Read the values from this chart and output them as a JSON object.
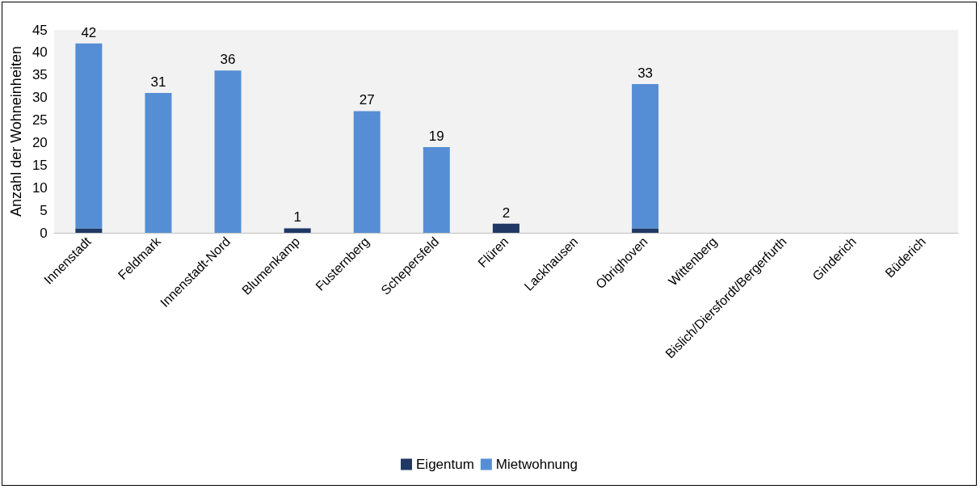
{
  "chart_data": {
    "type": "bar",
    "stacked": true,
    "ylabel": "Anzahl der Wohneinheiten",
    "categories": [
      "Innenstadt",
      "Feldmark",
      "Innenstadt-Nord",
      "Blumenkamp",
      "Fusternberg",
      "Schepersfeld",
      "Flüren",
      "Lackhausen",
      "Obrighoven",
      "Wittenberg",
      "Bislich/Diersfordt/Bergerfurth",
      "Ginderich",
      "Büderich"
    ],
    "series": [
      {
        "name": "Eigentum",
        "color": "#1f3864",
        "values": [
          1,
          0,
          0,
          1,
          0,
          0,
          2,
          0,
          1,
          0,
          0,
          0,
          0
        ]
      },
      {
        "name": "Mietwohnung",
        "color": "#558ed5",
        "values": [
          41,
          31,
          36,
          0,
          27,
          19,
          0,
          0,
          32,
          0,
          0,
          0,
          0
        ]
      }
    ],
    "totals": [
      "42",
      "31",
      "36",
      "1",
      "27",
      "19",
      "2",
      null,
      "33",
      null,
      null,
      null,
      null
    ],
    "ylim": [
      0,
      45
    ],
    "yticks": [
      0,
      5,
      10,
      15,
      20,
      25,
      30,
      35,
      40,
      45
    ],
    "grid": false,
    "legend": "bottom"
  }
}
